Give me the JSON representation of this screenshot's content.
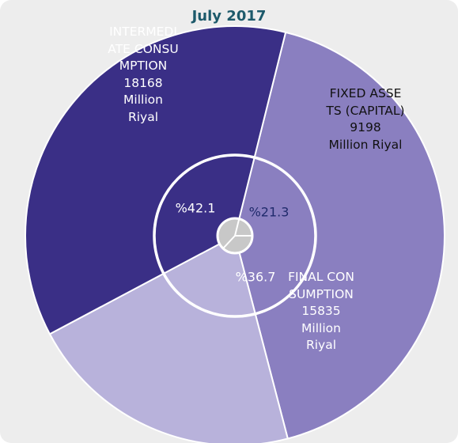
{
  "chart_data": {
    "type": "pie",
    "title": "July 2017",
    "categories": [
      "INTERMEDIATE CONSUMPTION",
      "FIXED ASSETS (CAPITAL)",
      "FINAL CONSUMPTION"
    ],
    "values": [
      18168,
      9198,
      15835
    ],
    "unit": "Million Riyal",
    "percent_values": [
      42.1,
      21.3,
      36.7
    ],
    "percent_labels": [
      "%42.1",
      "%21.3",
      "%36.7"
    ],
    "colors": [
      "#8a7fc0",
      "#b8b2db",
      "#3a2f86"
    ]
  }
}
